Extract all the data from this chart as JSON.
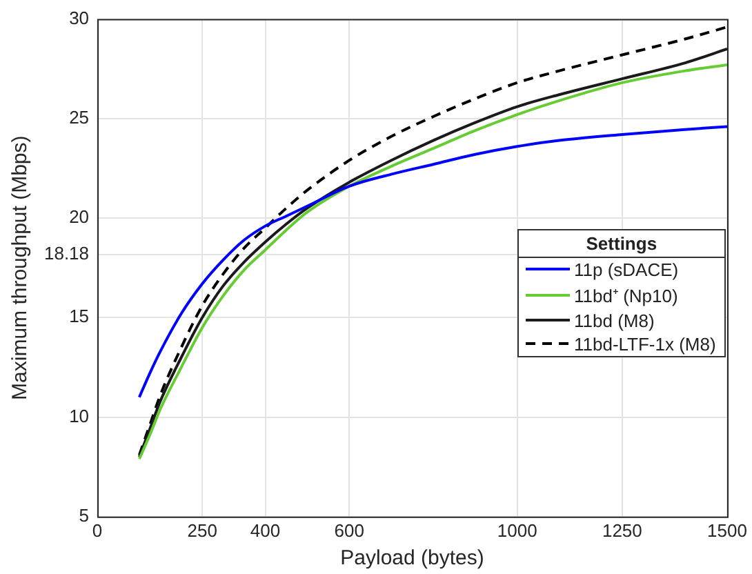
{
  "chart_data": {
    "type": "line",
    "xlabel": "Payload (bytes)",
    "ylabel": "Maximum throughput (Mbps)",
    "legend_title": "Settings",
    "x": [
      100,
      125,
      150,
      200,
      250,
      300,
      350,
      400,
      450,
      500,
      600,
      700,
      800,
      900,
      1000,
      1100,
      1250,
      1400,
      1500
    ],
    "series": [
      {
        "name": "11p (sDACE)",
        "color": "#0000ff",
        "line_style": "solid",
        "values": [
          11,
          12.2,
          13.3,
          15.2,
          16.7,
          17.9,
          18.9,
          19.6,
          20.1,
          20.6,
          21.6,
          22.2,
          22.7,
          23.2,
          23.6,
          23.9,
          24.2,
          24.45,
          24.6
        ]
      },
      {
        "name": "11bd⁺ (Np10)",
        "color": "#66cc33",
        "line_style": "solid",
        "values": [
          7.9,
          9.1,
          10.4,
          12.5,
          14.5,
          16.1,
          17.4,
          18.4,
          19.4,
          20.3,
          21.6,
          22.6,
          23.5,
          24.4,
          25.2,
          25.9,
          26.8,
          27.4,
          27.7
        ]
      },
      {
        "name": "11bd (M8)",
        "color": "#1a1a1a",
        "line_style": "solid",
        "values": [
          8,
          9.4,
          10.8,
          13,
          15,
          16.6,
          17.8,
          18.8,
          19.7,
          20.5,
          21.8,
          22.9,
          23.9,
          24.8,
          25.6,
          26.2,
          27,
          27.8,
          28.5
        ]
      },
      {
        "name": "11bd-LTF-1x (M8)",
        "color": "#000000",
        "line_style": "dashed",
        "values": [
          8.1,
          9.6,
          11.1,
          13.5,
          15.6,
          17.2,
          18.5,
          19.5,
          20.5,
          21.4,
          22.9,
          24.1,
          25.1,
          26,
          26.8,
          27.4,
          28.2,
          29,
          29.6
        ]
      }
    ],
    "xlim": [
      0,
      1500
    ],
    "xticks": [
      0,
      250,
      400,
      600,
      1000,
      1250,
      1500
    ],
    "ylim": [
      5,
      30
    ],
    "yticks": [
      5,
      10,
      15,
      18.18,
      20,
      25,
      30
    ],
    "grid": true,
    "legend": "right",
    "marker": "none"
  }
}
